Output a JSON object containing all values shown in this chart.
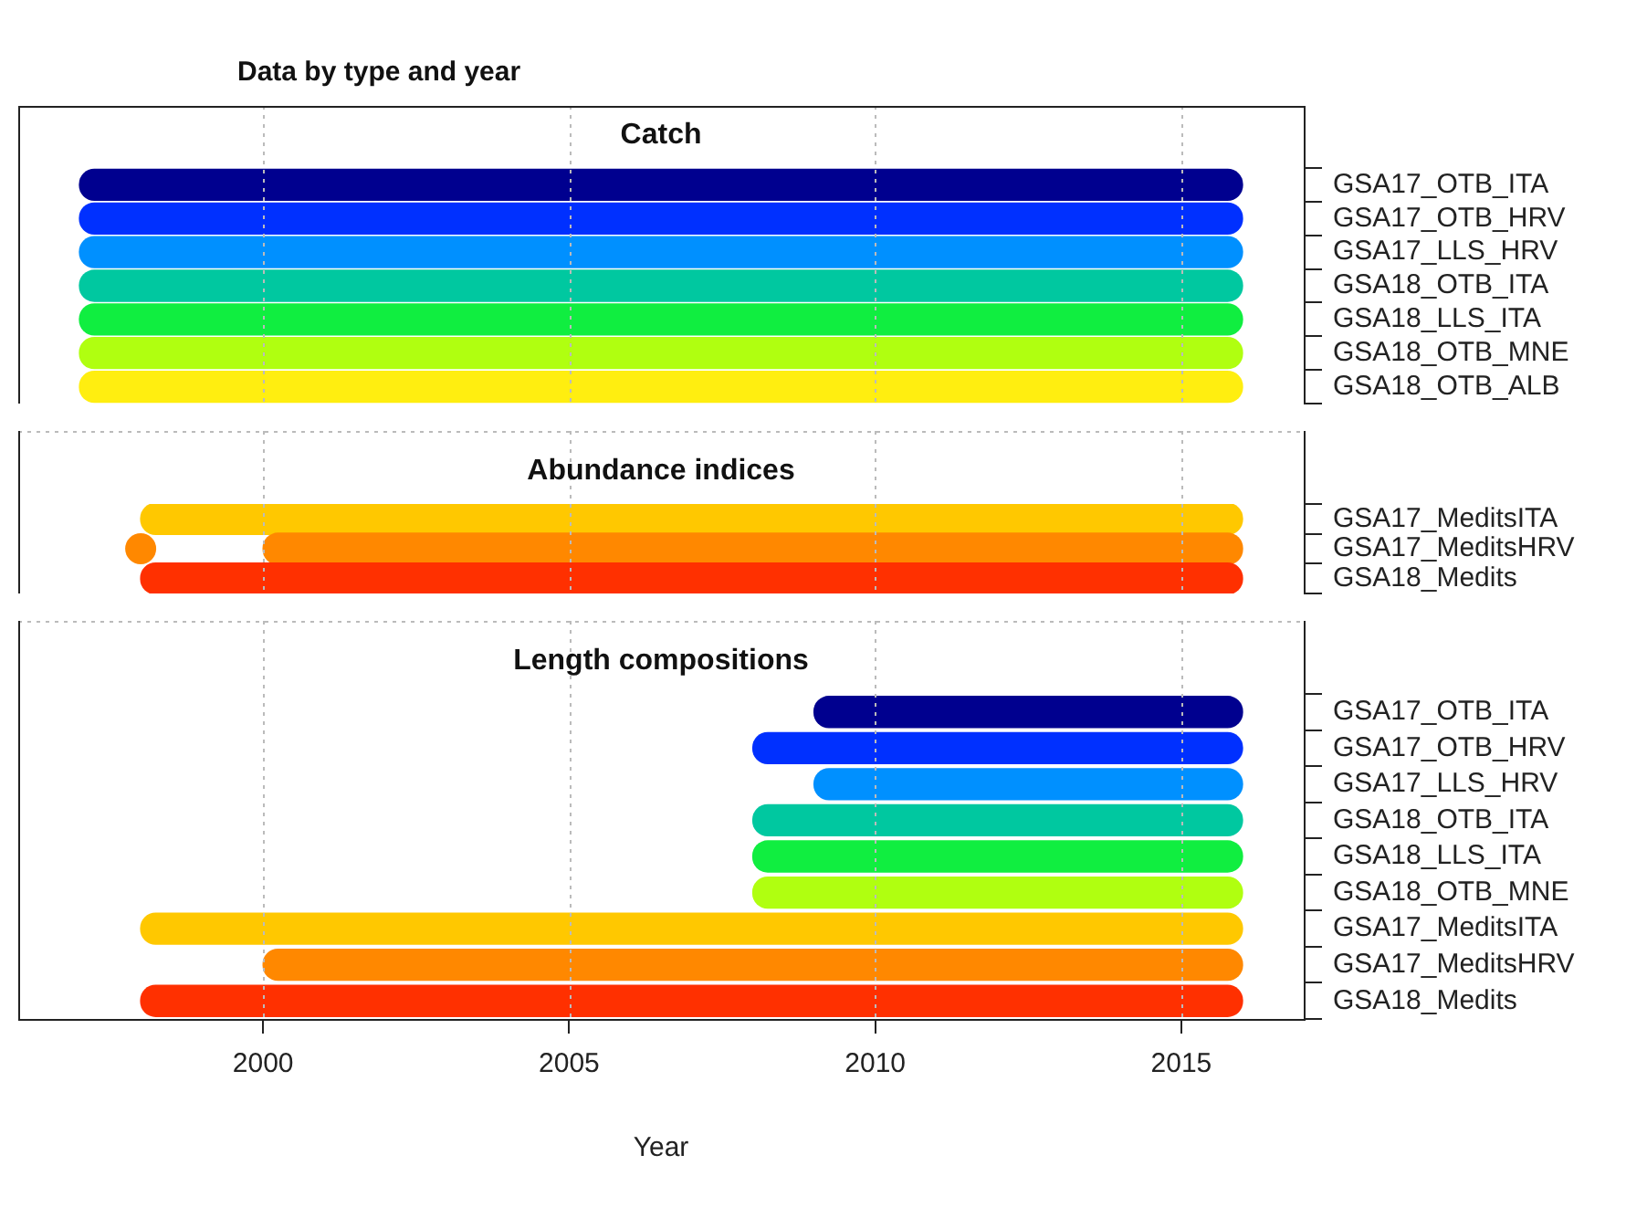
{
  "chart_data": [
    {
      "type": "bar",
      "orientation": "horizontal",
      "title": "Data by type and year",
      "subtitle": "Catch",
      "categories": [
        "GSA17_OTB_ITA",
        "GSA17_OTB_HRV",
        "GSA17_LLS_HRV",
        "GSA18_OTB_ITA",
        "GSA18_LLS_ITA",
        "GSA18_OTB_MNE",
        "GSA18_OTB_ALB"
      ],
      "base": [
        1997,
        1997,
        1997,
        1997,
        1997,
        1997,
        1997
      ],
      "values": [
        19,
        19,
        19,
        19,
        19,
        19,
        19
      ],
      "colors": [
        "#00008f",
        "#0030ff",
        "#0090ff",
        "#00c8a0",
        "#10ee40",
        "#b0ff10",
        "#ffee10"
      ],
      "xlim": [
        1996,
        2017
      ],
      "xticks": [
        2000,
        2005,
        2010,
        2015
      ],
      "grid": "x",
      "tick_labels": "y"
    },
    {
      "type": "bar",
      "orientation": "horizontal",
      "title": "Abundance indices",
      "categories": [
        "GSA17_MeditsITA",
        "GSA17_MeditsHRV",
        "GSA18_Medits"
      ],
      "series": [
        {
          "type": "bar",
          "base": [
            1998,
            2000,
            1998
          ],
          "values": [
            18,
            16,
            18
          ],
          "colors": [
            "#ffc800",
            "#ff8800",
            "#ff3000"
          ]
        },
        {
          "type": "scatter",
          "color": "#ff8800",
          "values": [
            null,
            1998,
            null
          ]
        }
      ],
      "marker": "circle",
      "xlim": [
        1996,
        2017
      ],
      "xticks": [
        2000,
        2005,
        2010,
        2015
      ],
      "grid": "x",
      "tick_labels": "y"
    },
    {
      "type": "bar",
      "orientation": "horizontal",
      "title": "Length compositions",
      "xlabel": "Year",
      "categories": [
        "GSA17_OTB_ITA",
        "GSA17_OTB_HRV",
        "GSA17_LLS_HRV",
        "GSA18_OTB_ITA",
        "GSA18_LLS_ITA",
        "GSA18_OTB_MNE",
        "GSA17_MeditsITA",
        "GSA17_MeditsHRV",
        "GSA18_Medits"
      ],
      "base": [
        2009,
        2008,
        2009,
        2008,
        2008,
        2008,
        1998,
        2000,
        1998
      ],
      "values": [
        7,
        8,
        7,
        8,
        8,
        8,
        18,
        16,
        18
      ],
      "colors": [
        "#00008f",
        "#0030ff",
        "#0090ff",
        "#00c8a0",
        "#10ee40",
        "#b0ff10",
        "#ffc800",
        "#ff8800",
        "#ff3000"
      ],
      "xlim": [
        1996,
        2017
      ],
      "xticks": [
        2000,
        2005,
        2010,
        2015
      ],
      "grid": "x"
    }
  ]
}
